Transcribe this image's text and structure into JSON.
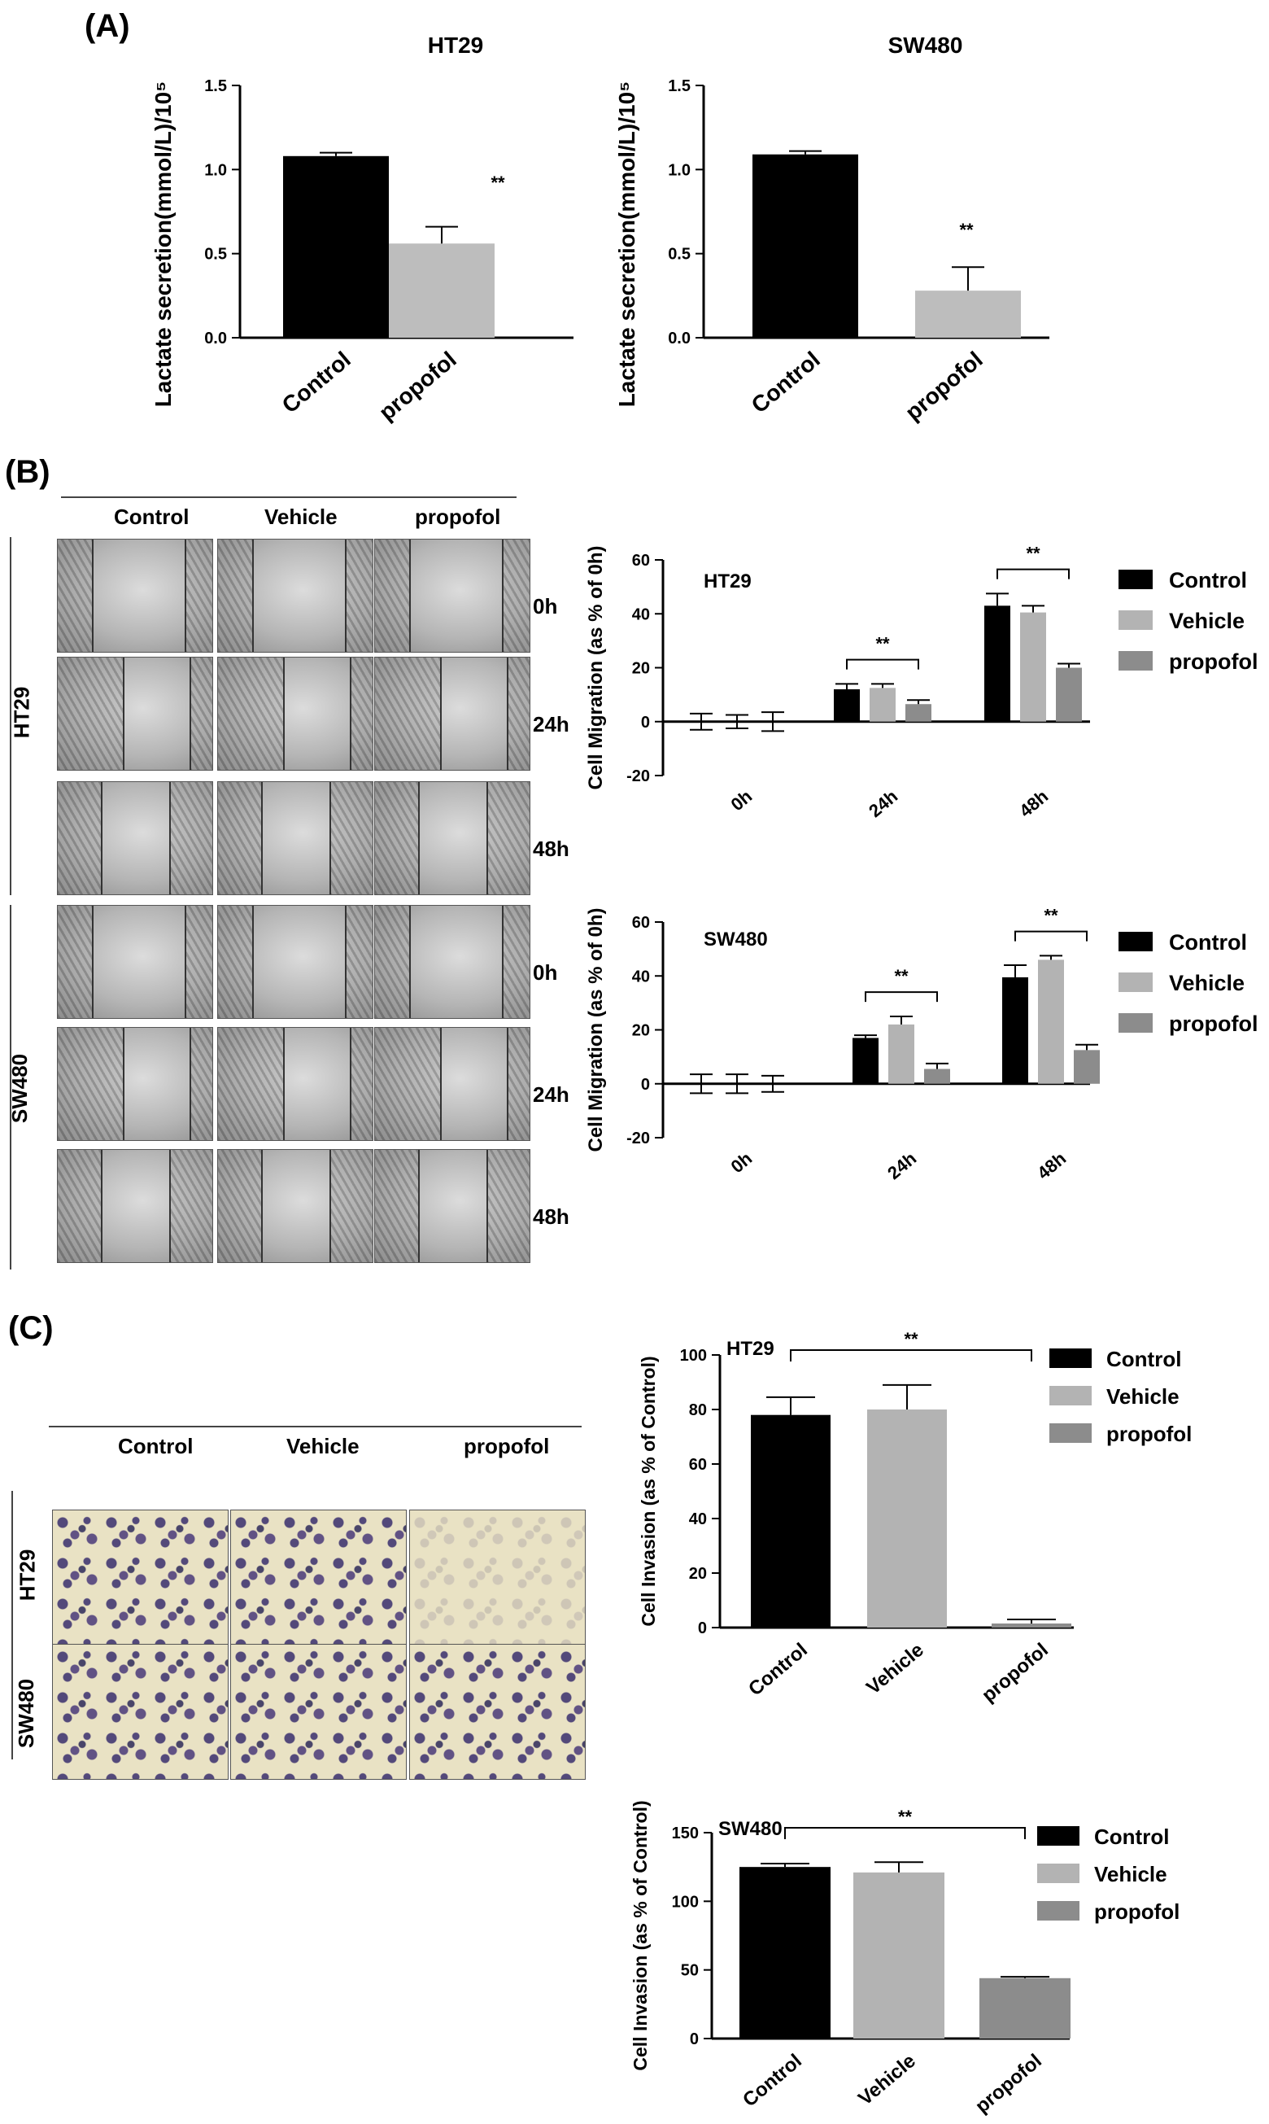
{
  "panels": {
    "a": "(A)",
    "b": "(B)",
    "c": "(C)"
  },
  "colors": {
    "control": "#000000",
    "vehicle": "#b3b3b3",
    "propofol": "#8c8c8c",
    "propofolA": "#bdbdbd"
  },
  "micro": {
    "b_cols": [
      "Control",
      "Vehicle",
      "propofol"
    ],
    "b_rows": [
      "0h",
      "24h",
      "48h",
      "0h",
      "24h",
      "48h"
    ],
    "b_groups": [
      "HT29",
      "SW480"
    ],
    "c_cols": [
      "Control",
      "Vehicle",
      "propofol"
    ],
    "c_groups": [
      "HT29",
      "SW480"
    ]
  },
  "chart_data": [
    {
      "id": "A1",
      "type": "bar",
      "title": "HT29",
      "ylabel": "Lactate secretion(mmol/L)/10⁵",
      "categories": [
        "Control",
        "propofol"
      ],
      "values": [
        1.08,
        0.56
      ],
      "errors": [
        0.02,
        0.1
      ],
      "ylim": [
        0,
        1.5
      ],
      "yticks": [
        "0.0",
        "0.5",
        "1.0",
        "1.5"
      ],
      "annotations": [
        "**"
      ]
    },
    {
      "id": "A2",
      "type": "bar",
      "title": "SW480",
      "ylabel": "Lactate secretion(mmol/L)/10⁵",
      "categories": [
        "Control",
        "propofol"
      ],
      "values": [
        1.09,
        0.28
      ],
      "errors": [
        0.02,
        0.14
      ],
      "ylim": [
        0,
        1.5
      ],
      "yticks": [
        "0.0",
        "0.5",
        "1.0",
        "1.5"
      ],
      "annotations": [
        "**"
      ]
    },
    {
      "id": "B1",
      "type": "bar",
      "title": "HT29",
      "ylabel": "Cell Migration  (as % of 0h)",
      "categories": [
        "0h",
        "24h",
        "48h"
      ],
      "series": [
        {
          "name": "Control",
          "values": [
            0,
            12,
            43
          ],
          "errors": [
            3,
            2,
            4.5
          ]
        },
        {
          "name": "Vehicle",
          "values": [
            0,
            12.5,
            40.5
          ],
          "errors": [
            2.5,
            1.5,
            2.5
          ]
        },
        {
          "name": "propofol",
          "values": [
            0,
            6.5,
            20
          ],
          "errors": [
            3.5,
            1.5,
            1.5
          ]
        }
      ],
      "ylim": [
        -20,
        60
      ],
      "yticks": [
        "-20",
        "0",
        "20",
        "40",
        "60"
      ],
      "annotations": [
        "**",
        "**"
      ]
    },
    {
      "id": "B2",
      "type": "bar",
      "title": "SW480",
      "ylabel": "Cell Migration  (as % of 0h)",
      "categories": [
        "0h",
        "24h",
        "48h"
      ],
      "series": [
        {
          "name": "Control",
          "values": [
            0,
            17,
            39.5
          ],
          "errors": [
            3.5,
            1,
            4.5
          ]
        },
        {
          "name": "Vehicle",
          "values": [
            0,
            22,
            46
          ],
          "errors": [
            3.5,
            3,
            1.5
          ]
        },
        {
          "name": "propofol",
          "values": [
            0,
            5.5,
            12.5
          ],
          "errors": [
            3,
            2,
            2
          ]
        }
      ],
      "ylim": [
        -20,
        60
      ],
      "yticks": [
        "-20",
        "0",
        "20",
        "40",
        "60"
      ],
      "annotations": [
        "**",
        "**"
      ]
    },
    {
      "id": "C1",
      "type": "bar",
      "title": "HT29",
      "ylabel": "Cell Invasion (as % of Control)",
      "categories": [
        "Control",
        "Vehicle",
        "propofol"
      ],
      "values": [
        78,
        80,
        1.5
      ],
      "errors": [
        6.5,
        9,
        1.5
      ],
      "ylim": [
        0,
        100
      ],
      "yticks": [
        "0",
        "20",
        "40",
        "60",
        "80",
        "100"
      ],
      "legend": [
        "Control",
        "Vehicle",
        "propofol"
      ],
      "annotations": [
        "**"
      ]
    },
    {
      "id": "C2",
      "type": "bar",
      "title": "SW480",
      "ylabel": "Cell Invasion (as % of Control)",
      "categories": [
        "Control",
        "Vehicle",
        "propofol"
      ],
      "values": [
        125,
        121,
        44
      ],
      "errors": [
        2.5,
        7.5,
        1
      ],
      "ylim": [
        0,
        150
      ],
      "yticks": [
        "0",
        "50",
        "100",
        "150"
      ],
      "legend": [
        "Control",
        "Vehicle",
        "propofol"
      ],
      "annotations": [
        "**"
      ]
    }
  ]
}
